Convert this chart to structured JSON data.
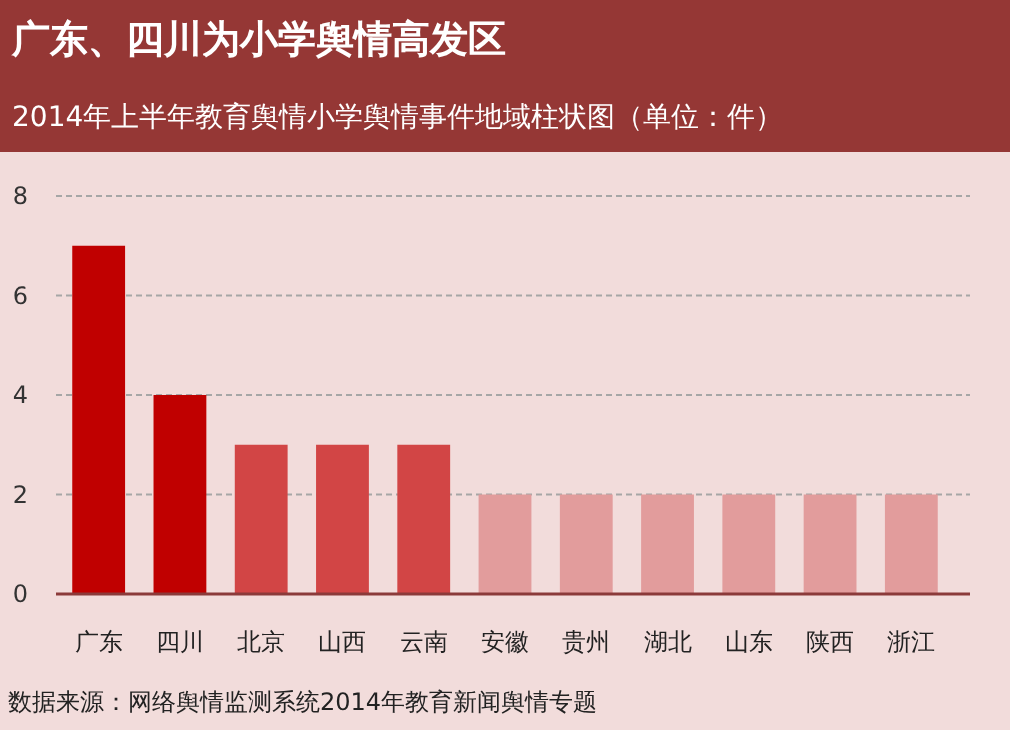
{
  "chart_data": {
    "type": "bar",
    "title": "广东、四川为小学舆情高发区",
    "subtitle": "2014年上半年教育舆情小学舆情事件地域柱状图（单位：件）",
    "categories": [
      "广东",
      "四川",
      "北京",
      "山西",
      "云南",
      "安徽",
      "贵州",
      "湖北",
      "山东",
      "陕西",
      "浙江"
    ],
    "values": [
      7,
      4,
      3,
      3,
      3,
      2,
      2,
      2,
      2,
      2,
      2
    ],
    "colors": [
      "#c00000",
      "#c00000",
      "#d24545",
      "#d24545",
      "#d24545",
      "#e29c9c",
      "#e29c9c",
      "#e29c9c",
      "#e29c9c",
      "#e29c9c",
      "#e29c9c"
    ],
    "ylim": [
      0,
      8
    ],
    "yticks": [
      0,
      2,
      4,
      6,
      8
    ],
    "grid": "y",
    "annotations": [
      "数据来源：网络舆情监测系统2014年教育新闻舆情专题"
    ]
  }
}
